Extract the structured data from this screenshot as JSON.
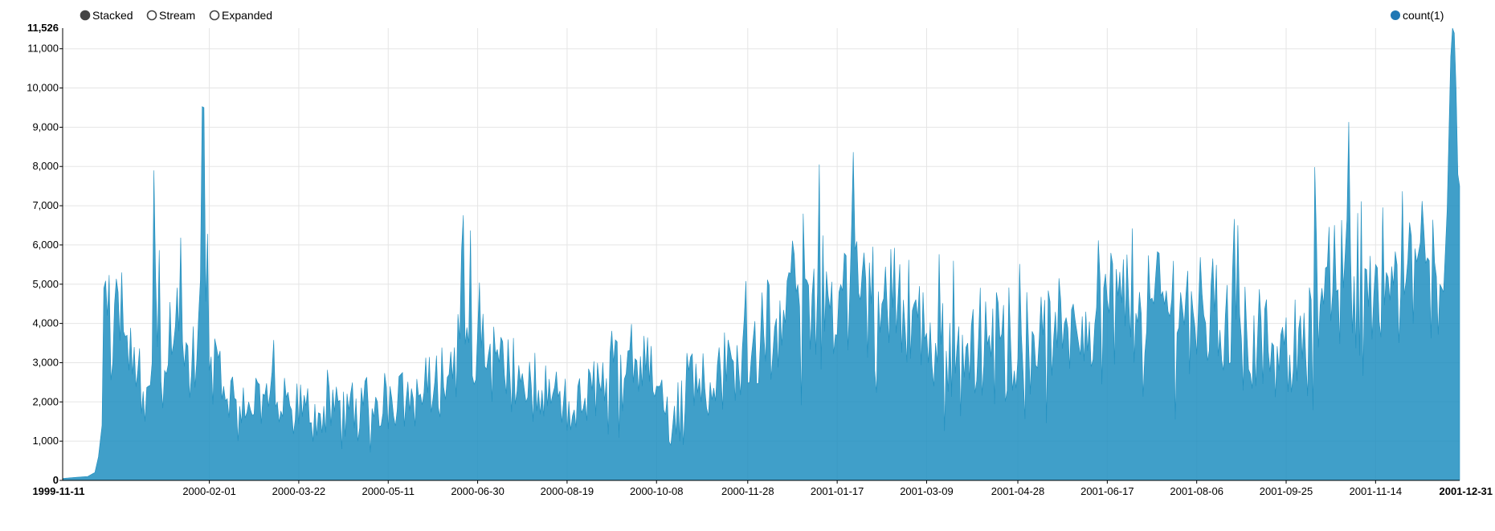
{
  "controls": {
    "modes": [
      {
        "label": "Stacked",
        "selected": true
      },
      {
        "label": "Stream",
        "selected": false
      },
      {
        "label": "Expanded",
        "selected": false
      }
    ]
  },
  "colors": {
    "series": "#1f8ebf",
    "legend_dot": "#1f77b4",
    "selected_radio": "#444444"
  },
  "chart_data": {
    "type": "area",
    "title": "",
    "xlabel": "",
    "ylabel": "",
    "ylim": [
      0,
      11526
    ],
    "y_max_label": "11,526",
    "y_ticks": [
      0,
      1000,
      2000,
      3000,
      4000,
      5000,
      6000,
      7000,
      8000,
      9000,
      10000,
      11000
    ],
    "y_tick_labels": [
      "0",
      "1,000",
      "2,000",
      "3,000",
      "4,000",
      "5,000",
      "6,000",
      "7,000",
      "8,000",
      "9,000",
      "10,000",
      "11,000"
    ],
    "x_start_label": "1999-11-11",
    "x_end_label": "2001-12-31",
    "x_tick_labels": [
      "2000-02-01",
      "2000-03-22",
      "2000-05-11",
      "2000-06-30",
      "2000-08-19",
      "2000-10-08",
      "2000-11-28",
      "2001-01-17",
      "2001-03-09",
      "2001-04-28",
      "2001-06-17",
      "2001-08-06",
      "2001-09-25",
      "2001-11-14"
    ],
    "x_tick_days": [
      82,
      132,
      182,
      232,
      282,
      332,
      383,
      433,
      483,
      534,
      584,
      634,
      684,
      734
    ],
    "total_days": 781,
    "grid": true,
    "legend_position": "top-right",
    "series": [
      {
        "name": "count(1)",
        "anchors": [
          [
            0,
            50
          ],
          [
            8,
            80
          ],
          [
            14,
            100
          ],
          [
            18,
            200
          ],
          [
            20,
            600
          ],
          [
            22,
            1400
          ],
          [
            23,
            4900
          ],
          [
            25,
            4200
          ],
          [
            28,
            3000
          ],
          [
            31,
            4800
          ],
          [
            34,
            3800
          ],
          [
            36,
            3700
          ],
          [
            39,
            2700
          ],
          [
            42,
            2800
          ],
          [
            46,
            1500
          ],
          [
            50,
            3000
          ],
          [
            51,
            7900
          ],
          [
            53,
            3400
          ],
          [
            57,
            2800
          ],
          [
            61,
            3200
          ],
          [
            65,
            3800
          ],
          [
            68,
            2900
          ],
          [
            72,
            2700
          ],
          [
            76,
            4200
          ],
          [
            79,
            9500
          ],
          [
            82,
            2800
          ],
          [
            86,
            3400
          ],
          [
            90,
            2400
          ],
          [
            96,
            2100
          ],
          [
            104,
            2000
          ],
          [
            112,
            2200
          ],
          [
            120,
            2000
          ],
          [
            128,
            1800
          ],
          [
            136,
            1900
          ],
          [
            144,
            1700
          ],
          [
            152,
            1750
          ],
          [
            160,
            1800
          ],
          [
            168,
            1900
          ],
          [
            176,
            2000
          ],
          [
            184,
            2100
          ],
          [
            192,
            2050
          ],
          [
            200,
            2200
          ],
          [
            208,
            2500
          ],
          [
            216,
            2700
          ],
          [
            222,
            3600
          ],
          [
            226,
            3900
          ],
          [
            232,
            3800
          ],
          [
            238,
            3200
          ],
          [
            244,
            3000
          ],
          [
            250,
            2700
          ],
          [
            256,
            2500
          ],
          [
            262,
            2400
          ],
          [
            268,
            2300
          ],
          [
            274,
            2200
          ],
          [
            280,
            2000
          ],
          [
            286,
            1800
          ],
          [
            292,
            2100
          ],
          [
            296,
            2300
          ],
          [
            300,
            2500
          ],
          [
            304,
            2600
          ],
          [
            308,
            3000
          ],
          [
            312,
            3200
          ],
          [
            316,
            3300
          ],
          [
            320,
            3100
          ],
          [
            326,
            2800
          ],
          [
            332,
            2400
          ],
          [
            336,
            1800
          ],
          [
            340,
            900
          ],
          [
            344,
            2500
          ],
          [
            350,
            2800
          ],
          [
            356,
            2600
          ],
          [
            362,
            2500
          ],
          [
            368,
            2700
          ],
          [
            374,
            3100
          ],
          [
            380,
            3400
          ],
          [
            386,
            3600
          ],
          [
            392,
            3700
          ],
          [
            398,
            3900
          ],
          [
            404,
            4000
          ],
          [
            410,
            4800
          ],
          [
            416,
            5100
          ],
          [
            422,
            4800
          ],
          [
            428,
            4700
          ],
          [
            434,
            4800
          ],
          [
            440,
            4700
          ],
          [
            446,
            4600
          ],
          [
            452,
            4500
          ],
          [
            458,
            4500
          ],
          [
            464,
            4400
          ],
          [
            470,
            4600
          ],
          [
            476,
            4500
          ],
          [
            482,
            3600
          ],
          [
            488,
            3500
          ],
          [
            494,
            3300
          ],
          [
            500,
            3400
          ],
          [
            506,
            3500
          ],
          [
            512,
            3600
          ],
          [
            518,
            3700
          ],
          [
            524,
            3600
          ],
          [
            530,
            3500
          ],
          [
            536,
            3700
          ],
          [
            542,
            3800
          ],
          [
            548,
            3700
          ],
          [
            554,
            3600
          ],
          [
            560,
            4000
          ],
          [
            566,
            4100
          ],
          [
            572,
            4300
          ],
          [
            578,
            4400
          ],
          [
            584,
            4600
          ],
          [
            590,
            4700
          ],
          [
            596,
            4600
          ],
          [
            602,
            4800
          ],
          [
            608,
            4600
          ],
          [
            614,
            4700
          ],
          [
            620,
            4600
          ],
          [
            626,
            4400
          ],
          [
            632,
            4300
          ],
          [
            638,
            4200
          ],
          [
            644,
            4300
          ],
          [
            650,
            4200
          ],
          [
            656,
            4100
          ],
          [
            662,
            3800
          ],
          [
            668,
            3600
          ],
          [
            674,
            3300
          ],
          [
            680,
            2800
          ],
          [
            686,
            3200
          ],
          [
            692,
            4200
          ],
          [
            698,
            4600
          ],
          [
            704,
            4900
          ],
          [
            710,
            4800
          ],
          [
            716,
            4900
          ],
          [
            722,
            5200
          ],
          [
            728,
            5400
          ],
          [
            734,
            5500
          ],
          [
            740,
            5300
          ],
          [
            746,
            5500
          ],
          [
            752,
            5600
          ],
          [
            758,
            5800
          ],
          [
            764,
            5600
          ],
          [
            768,
            5200
          ],
          [
            772,
            4800
          ],
          [
            774,
            6900
          ],
          [
            776,
            10800
          ],
          [
            777,
            11526
          ],
          [
            778,
            11400
          ],
          [
            779,
            10000
          ],
          [
            780,
            7800
          ],
          [
            781,
            7500
          ]
        ]
      }
    ]
  }
}
